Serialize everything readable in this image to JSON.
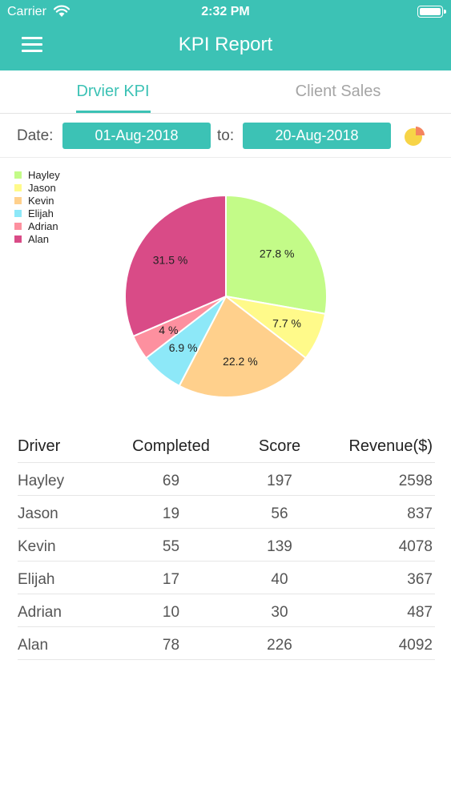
{
  "status_bar": {
    "carrier": "Carrier",
    "time": "2:32 PM"
  },
  "header": {
    "title": "KPI Report"
  },
  "tabs": [
    {
      "label": "Drvier KPI",
      "active": true
    },
    {
      "label": "Client Sales",
      "active": false
    }
  ],
  "filters": {
    "date_label": "Date:",
    "from_value": "01-Aug-2018",
    "to_label": "to:",
    "to_value": "20-Aug-2018"
  },
  "icons": {
    "menu": "hamburger-menu-icon",
    "chart_toggle": "pie-chart-icon",
    "wifi": "wifi-icon",
    "battery": "battery-icon"
  },
  "colors": {
    "accent": "#3cc2b5"
  },
  "chart_data": {
    "type": "pie",
    "legend_position": "top-left",
    "slices": [
      {
        "name": "Hayley",
        "value": 27.8,
        "label": "27.8 %",
        "color": "#c3fb88"
      },
      {
        "name": "Jason",
        "value": 7.7,
        "label": "7.7 %",
        "color": "#fffa8a"
      },
      {
        "name": "Kevin",
        "value": 22.2,
        "label": "22.2 %",
        "color": "#ffd08c"
      },
      {
        "name": "Elijah",
        "value": 6.9,
        "label": "6.9 %",
        "color": "#8de8f8"
      },
      {
        "name": "Adrian",
        "value": 4,
        "label": "4 %",
        "color": "#fd909f"
      },
      {
        "name": "Alan",
        "value": 31.5,
        "label": "31.5 %",
        "color": "#d94b87"
      }
    ]
  },
  "table": {
    "headers": [
      "Driver",
      "Completed",
      "Score",
      "Revenue($)"
    ],
    "rows": [
      [
        "Hayley",
        "69",
        "197",
        "2598"
      ],
      [
        "Jason",
        "19",
        "56",
        "837"
      ],
      [
        "Kevin",
        "55",
        "139",
        "4078"
      ],
      [
        "Elijah",
        "17",
        "40",
        "367"
      ],
      [
        "Adrian",
        "10",
        "30",
        "487"
      ],
      [
        "Alan",
        "78",
        "226",
        "4092"
      ]
    ]
  }
}
